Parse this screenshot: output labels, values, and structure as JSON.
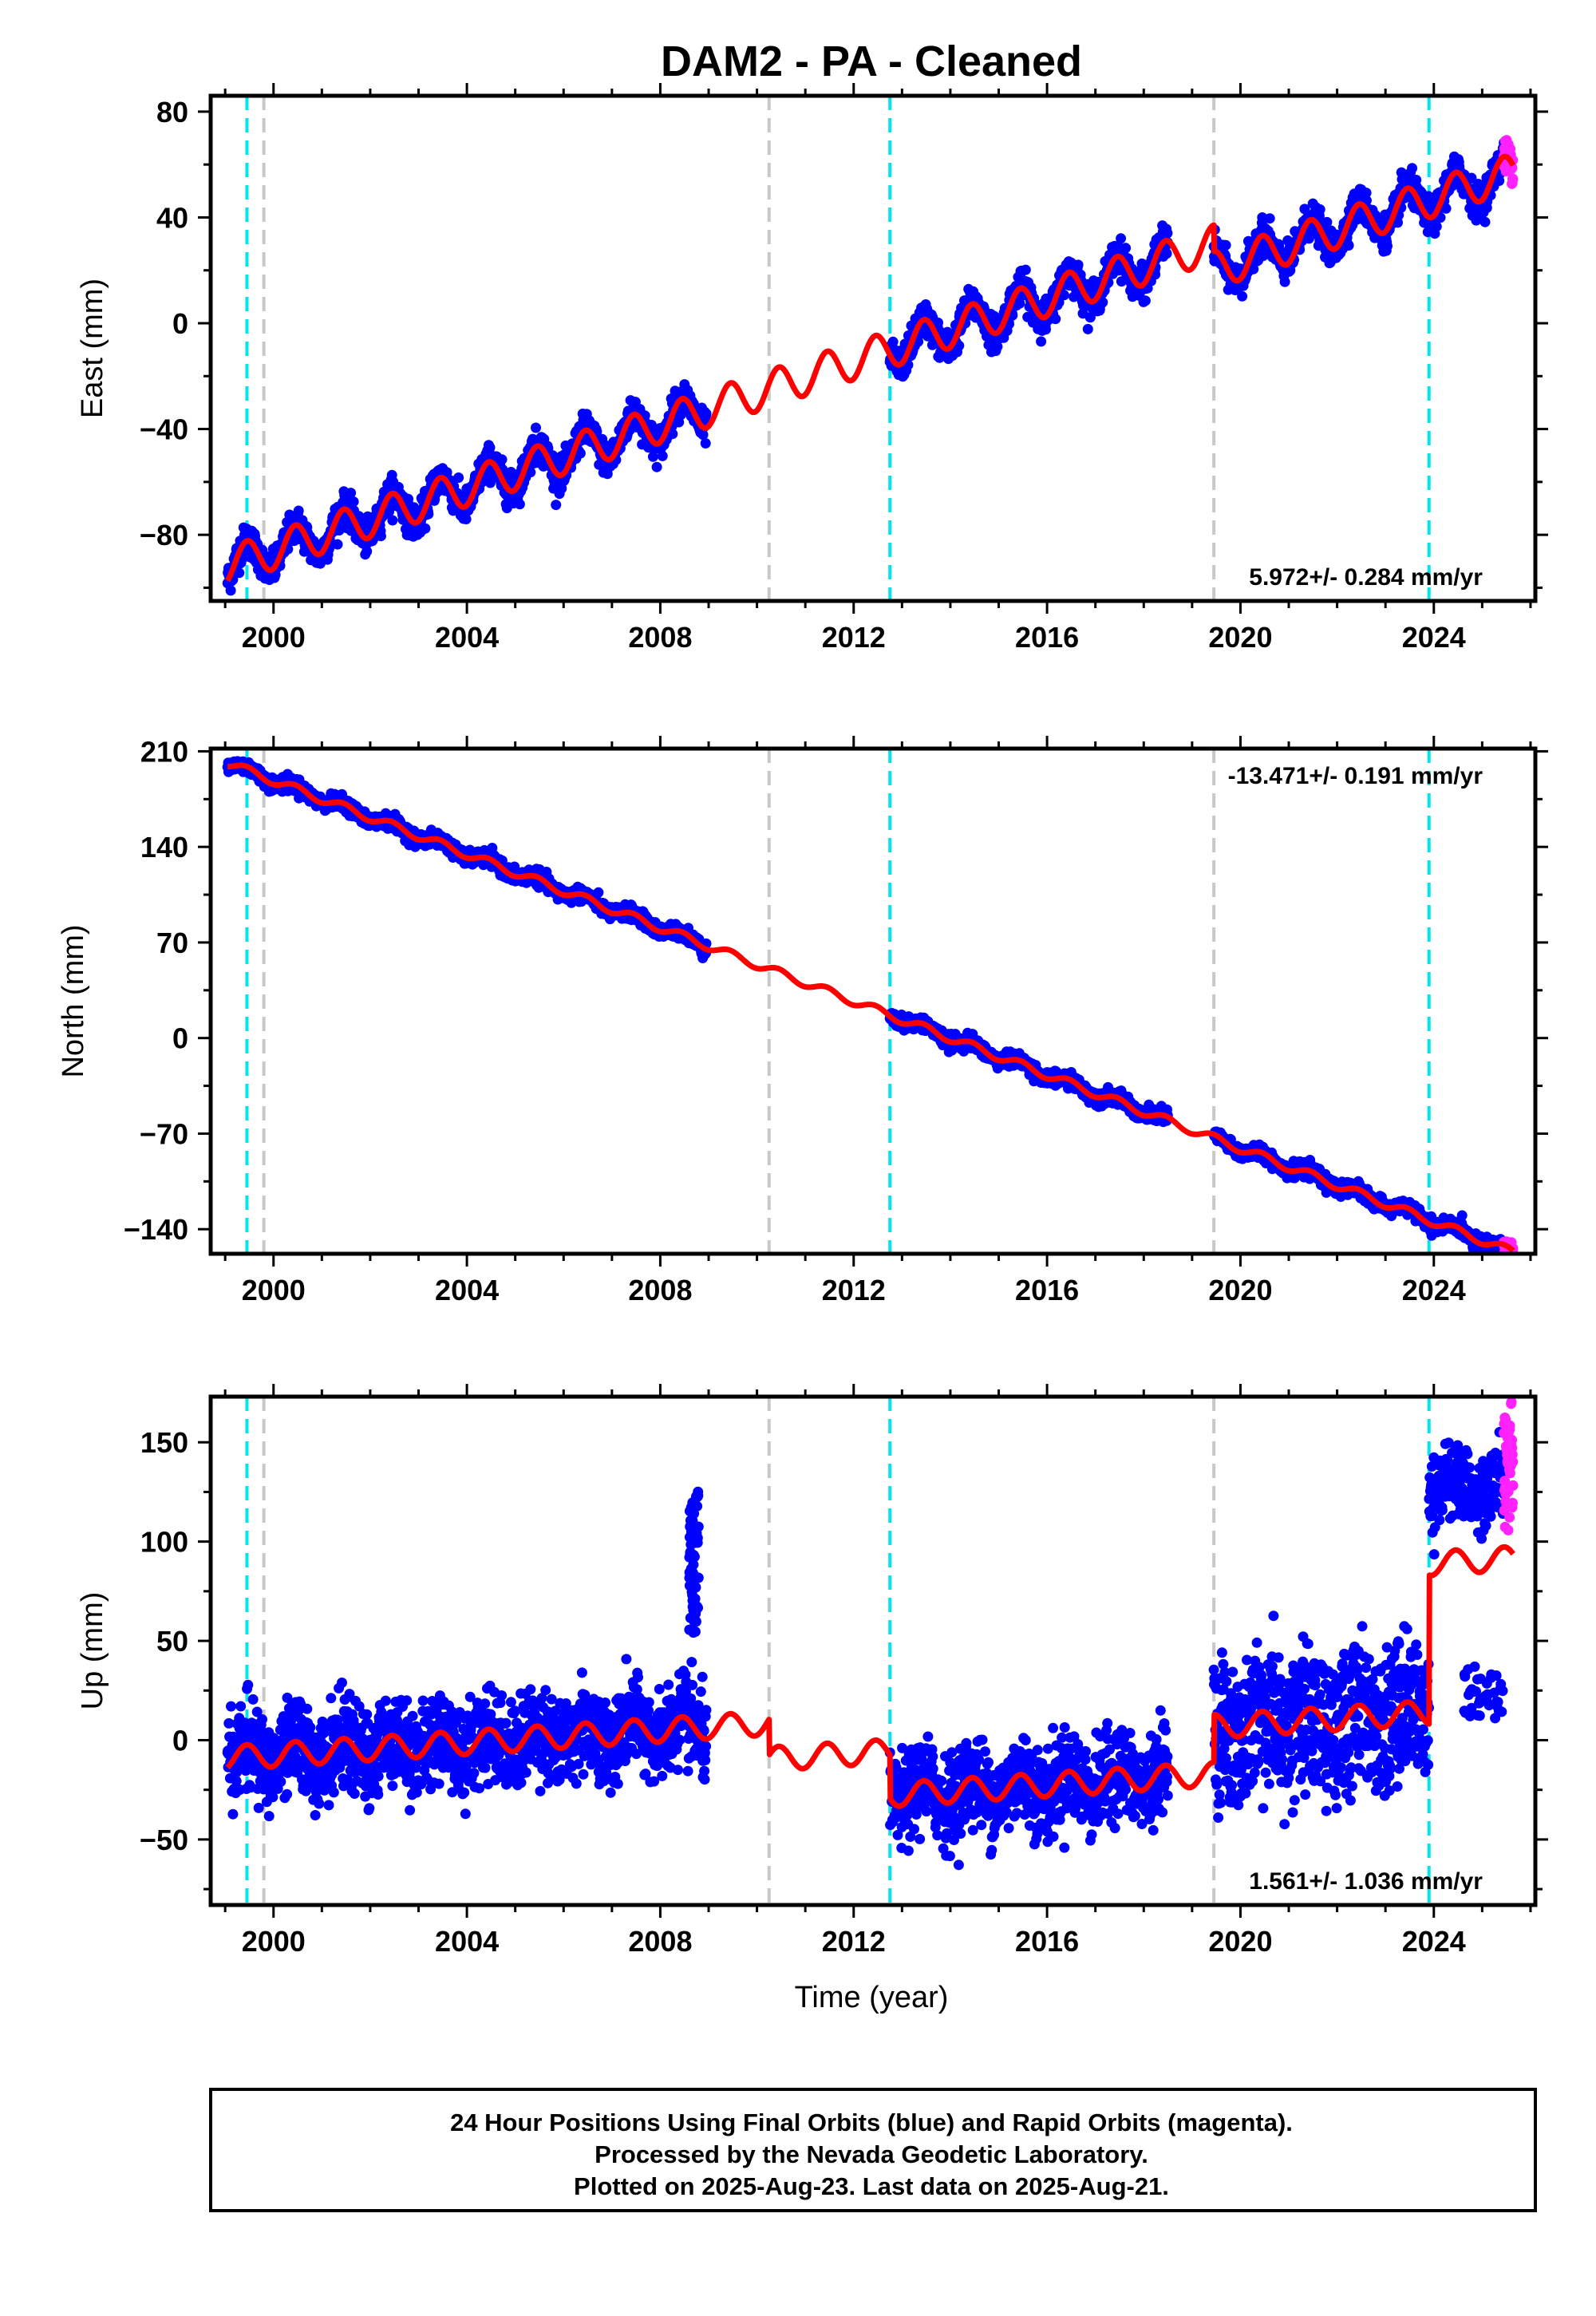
{
  "title": "DAM2  - PA - Cleaned",
  "xlabel": "Time (year)",
  "footer": {
    "line1": "24 Hour Positions Using Final Orbits (blue) and Rapid Orbits (magenta).",
    "line2": "Processed by the Nevada Geodetic Laboratory.",
    "line3": "Plotted on 2025-Aug-23. Last data on 2025-Aug-21."
  },
  "colors": {
    "final_orbits": "#0000ff",
    "rapid_orbits": "#ff22ff",
    "model": "#ff0000",
    "equipment_change": "#00e5ee",
    "other_event": "#c8c8c8"
  },
  "chart_data": [
    {
      "type": "scatter",
      "component": "east",
      "ylabel": "East (mm)",
      "rate_text": "5.972+/- 0.284 mm/yr",
      "xlim": [
        1998.7,
        2026.1
      ],
      "ylim": [
        -105,
        86
      ],
      "xticks": [
        2000,
        2004,
        2008,
        2012,
        2016,
        2020,
        2024
      ],
      "xtick_labels": [
        "2000",
        "2004",
        "2008",
        "2012",
        "2016",
        "2020",
        "2024"
      ],
      "yticks": [
        -80,
        -40,
        0,
        40,
        80
      ],
      "ytick_labels": [
        "−80",
        "−40",
        "0",
        "40",
        "80"
      ],
      "data_segments": [
        [
          1999.05,
          2008.95
        ],
        [
          2012.75,
          2018.5
        ],
        [
          2019.45,
          2025.45
        ]
      ],
      "rapid_span": [
        2025.45,
        2025.64
      ],
      "model": {
        "intercept_at_1999": -92,
        "rate_mm_per_yr": 5.972,
        "annual_amplitude_mm": 7,
        "offsets": [
          {
            "year": 2012.75,
            "offset_mm": 0
          },
          {
            "year": 2019.45,
            "offset_mm": -10
          }
        ]
      },
      "scatter_sd_mm": 3.0,
      "series": [
        {
          "name": "Final Orbits",
          "color": "#0000ff"
        },
        {
          "name": "Rapid Orbits",
          "color": "#ff22ff"
        },
        {
          "name": "Model",
          "color": "#ff0000"
        }
      ]
    },
    {
      "type": "scatter",
      "component": "north",
      "ylabel": "North (mm)",
      "rate_text": "-13.471+/- 0.191 mm/yr",
      "xlim": [
        1998.7,
        2026.1
      ],
      "ylim": [
        -158,
        212
      ],
      "xticks": [
        2000,
        2004,
        2008,
        2012,
        2016,
        2020,
        2024
      ],
      "xtick_labels": [
        "2000",
        "2004",
        "2008",
        "2012",
        "2016",
        "2020",
        "2024"
      ],
      "yticks": [
        -140,
        -70,
        0,
        70,
        140,
        210
      ],
      "ytick_labels": [
        "−140",
        "−70",
        "0",
        "70",
        "140",
        "210"
      ],
      "data_segments": [
        [
          1999.05,
          2008.95
        ],
        [
          2012.75,
          2018.5
        ],
        [
          2019.45,
          2025.45
        ]
      ],
      "rapid_span": [
        2025.45,
        2025.64
      ],
      "model": {
        "intercept_at_1999": 202,
        "rate_mm_per_yr": -13.471,
        "annual_amplitude_mm": 3,
        "offsets": [
          {
            "year": 2012.75,
            "offset_mm": 0
          },
          {
            "year": 2019.45,
            "offset_mm": 0
          }
        ]
      },
      "scatter_sd_mm": 2.5,
      "series": [
        {
          "name": "Final Orbits",
          "color": "#0000ff"
        },
        {
          "name": "Rapid Orbits",
          "color": "#ff22ff"
        },
        {
          "name": "Model",
          "color": "#ff0000"
        }
      ]
    },
    {
      "type": "scatter",
      "component": "up",
      "ylabel": "Up (mm)",
      "rate_text": "1.561+/- 1.036 mm/yr",
      "xlim": [
        1998.7,
        2026.1
      ],
      "ylim": [
        -83,
        173
      ],
      "xticks": [
        2000,
        2004,
        2008,
        2012,
        2016,
        2020,
        2024
      ],
      "xtick_labels": [
        "2000",
        "2004",
        "2008",
        "2012",
        "2016",
        "2020",
        "2024"
      ],
      "yticks": [
        -50,
        0,
        50,
        100,
        150
      ],
      "ytick_labels": [
        "−50",
        "0",
        "50",
        "100",
        "150"
      ],
      "data_segments": [
        [
          1999.05,
          2008.95
        ],
        [
          2012.75,
          2018.5
        ],
        [
          2019.45,
          2025.45
        ]
      ],
      "rapid_span": [
        2025.45,
        2025.64
      ],
      "model": {
        "intercept_at_1999": -9,
        "rate_mm_per_yr": 1.561,
        "annual_amplitude_mm": 6,
        "offsets": [
          {
            "year": 2010.25,
            "offset_mm": -18
          },
          {
            "year": 2012.75,
            "offset_mm": -22
          },
          {
            "year": 2019.45,
            "offset_mm": 24
          },
          {
            "year": 2023.9,
            "offset_mm": 75
          }
        ]
      },
      "scatter_sd_mm": 11,
      "outlier_cluster": {
        "x_range": [
          2008.6,
          2008.8
        ],
        "y_range": [
          50,
          128
        ]
      },
      "series": [
        {
          "name": "Final Orbits",
          "color": "#0000ff"
        },
        {
          "name": "Rapid Orbits",
          "color": "#ff22ff"
        },
        {
          "name": "Model",
          "color": "#ff0000"
        }
      ]
    }
  ],
  "event_lines": [
    {
      "year": 1999.45,
      "kind": "equipment_change"
    },
    {
      "year": 1999.8,
      "kind": "other_event"
    },
    {
      "year": 2010.25,
      "kind": "other_event"
    },
    {
      "year": 2012.75,
      "kind": "equipment_change"
    },
    {
      "year": 2019.45,
      "kind": "other_event"
    },
    {
      "year": 2023.9,
      "kind": "equipment_change"
    }
  ]
}
